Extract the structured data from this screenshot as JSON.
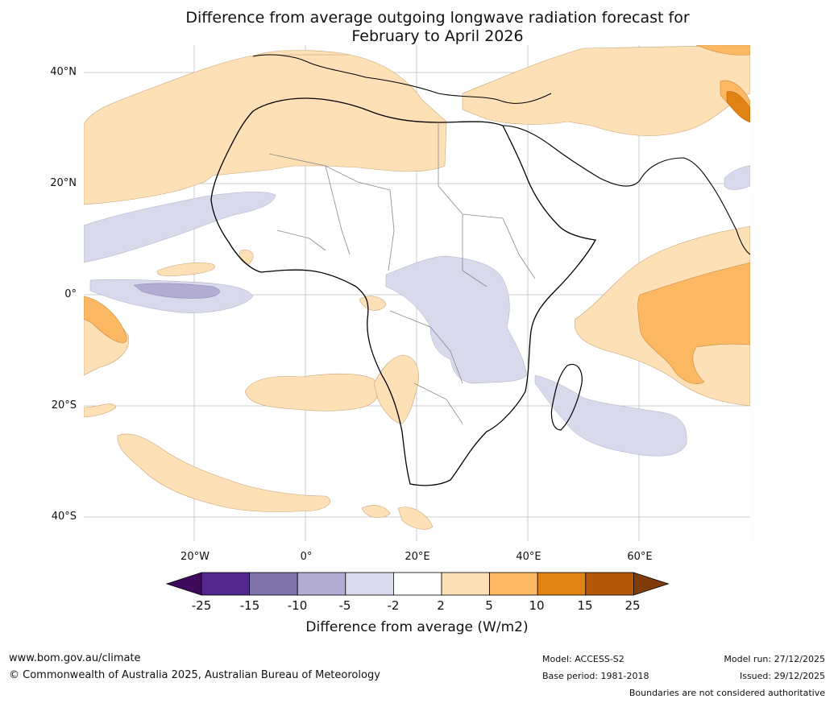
{
  "title": {
    "line1": "Difference from average outgoing longwave radiation forecast for",
    "line2": "February to April 2026"
  },
  "axes": {
    "lat_labels": [
      "40°N",
      "20°N",
      "0°",
      "20°S",
      "40°S"
    ],
    "lon_labels": [
      "20°W",
      "0°",
      "20°E",
      "40°E",
      "60°E"
    ]
  },
  "legend": {
    "label": "Difference from average (W/m2)",
    "ticks": [
      "-25",
      "-15",
      "-10",
      "-5",
      "-2",
      "2",
      "5",
      "10",
      "15",
      "25"
    ],
    "colors": [
      "#3f0a5c",
      "#54278f",
      "#8073ac",
      "#b2abd2",
      "#d8daeb",
      "#ffffff",
      "#fee0b6",
      "#fdb863",
      "#e08214",
      "#b35806",
      "#7f3b08"
    ]
  },
  "footer": {
    "website": "www.bom.gov.au/climate",
    "copyright": "© Commonwealth of Australia 2025, Australian Bureau of Meteorology",
    "model": "Model: ACCESS-S2",
    "base_period": "Base period: 1981-2018",
    "model_run": "Model run: 27/12/2025",
    "issued": "Issued: 29/12/2025",
    "disclaimer": "Boundaries are not considered authoritative"
  }
}
